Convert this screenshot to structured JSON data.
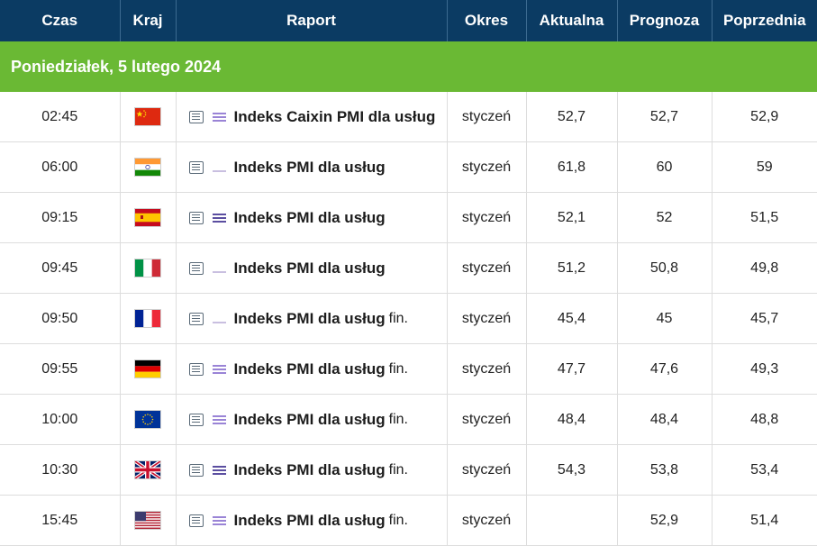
{
  "header": {
    "time": "Czas",
    "country": "Kraj",
    "report": "Raport",
    "period": "Okres",
    "actual": "Aktualna",
    "forecast": "Prognoza",
    "previous": "Poprzednia"
  },
  "colors": {
    "header_bg": "#0b3b63",
    "day_bg": "#6ab934",
    "importance_low": "#c9bfe0",
    "importance_mid": "#9a84d6",
    "importance_high": "#5b4ea0"
  },
  "day_label": "Poniedziałek, 5 lutego 2024",
  "events": [
    {
      "time": "02:45",
      "country": "china",
      "importance": 2,
      "name": "Indeks Caixin PMI dla usług",
      "suffix": "",
      "period": "styczeń",
      "actual": "52,7",
      "forecast": "52,7",
      "previous": "52,9"
    },
    {
      "time": "06:00",
      "country": "india",
      "importance": 1,
      "name": "Indeks PMI dla usług",
      "suffix": "",
      "period": "styczeń",
      "actual": "61,8",
      "forecast": "60",
      "previous": "59"
    },
    {
      "time": "09:15",
      "country": "spain",
      "importance": 3,
      "name": "Indeks PMI dla usług",
      "suffix": "",
      "period": "styczeń",
      "actual": "52,1",
      "forecast": "52",
      "previous": "51,5"
    },
    {
      "time": "09:45",
      "country": "italy",
      "importance": 1,
      "name": "Indeks PMI dla usług",
      "suffix": "",
      "period": "styczeń",
      "actual": "51,2",
      "forecast": "50,8",
      "previous": "49,8"
    },
    {
      "time": "09:50",
      "country": "france",
      "importance": 1,
      "name": "Indeks PMI dla usług",
      "suffix": "fin.",
      "period": "styczeń",
      "actual": "45,4",
      "forecast": "45",
      "previous": "45,7"
    },
    {
      "time": "09:55",
      "country": "germany",
      "importance": 2,
      "name": "Indeks PMI dla usług",
      "suffix": "fin.",
      "period": "styczeń",
      "actual": "47,7",
      "forecast": "47,6",
      "previous": "49,3"
    },
    {
      "time": "10:00",
      "country": "eurozone",
      "importance": 2,
      "name": "Indeks PMI dla usług",
      "suffix": "fin.",
      "period": "styczeń",
      "actual": "48,4",
      "forecast": "48,4",
      "previous": "48,8"
    },
    {
      "time": "10:30",
      "country": "uk",
      "importance": 3,
      "name": "Indeks PMI dla usług",
      "suffix": "fin.",
      "period": "styczeń",
      "actual": "54,3",
      "forecast": "53,8",
      "previous": "53,4"
    },
    {
      "time": "15:45",
      "country": "usa",
      "importance": 2,
      "name": "Indeks PMI dla usług",
      "suffix": "fin.",
      "period": "styczeń",
      "actual": "",
      "forecast": "52,9",
      "previous": "51,4"
    }
  ]
}
